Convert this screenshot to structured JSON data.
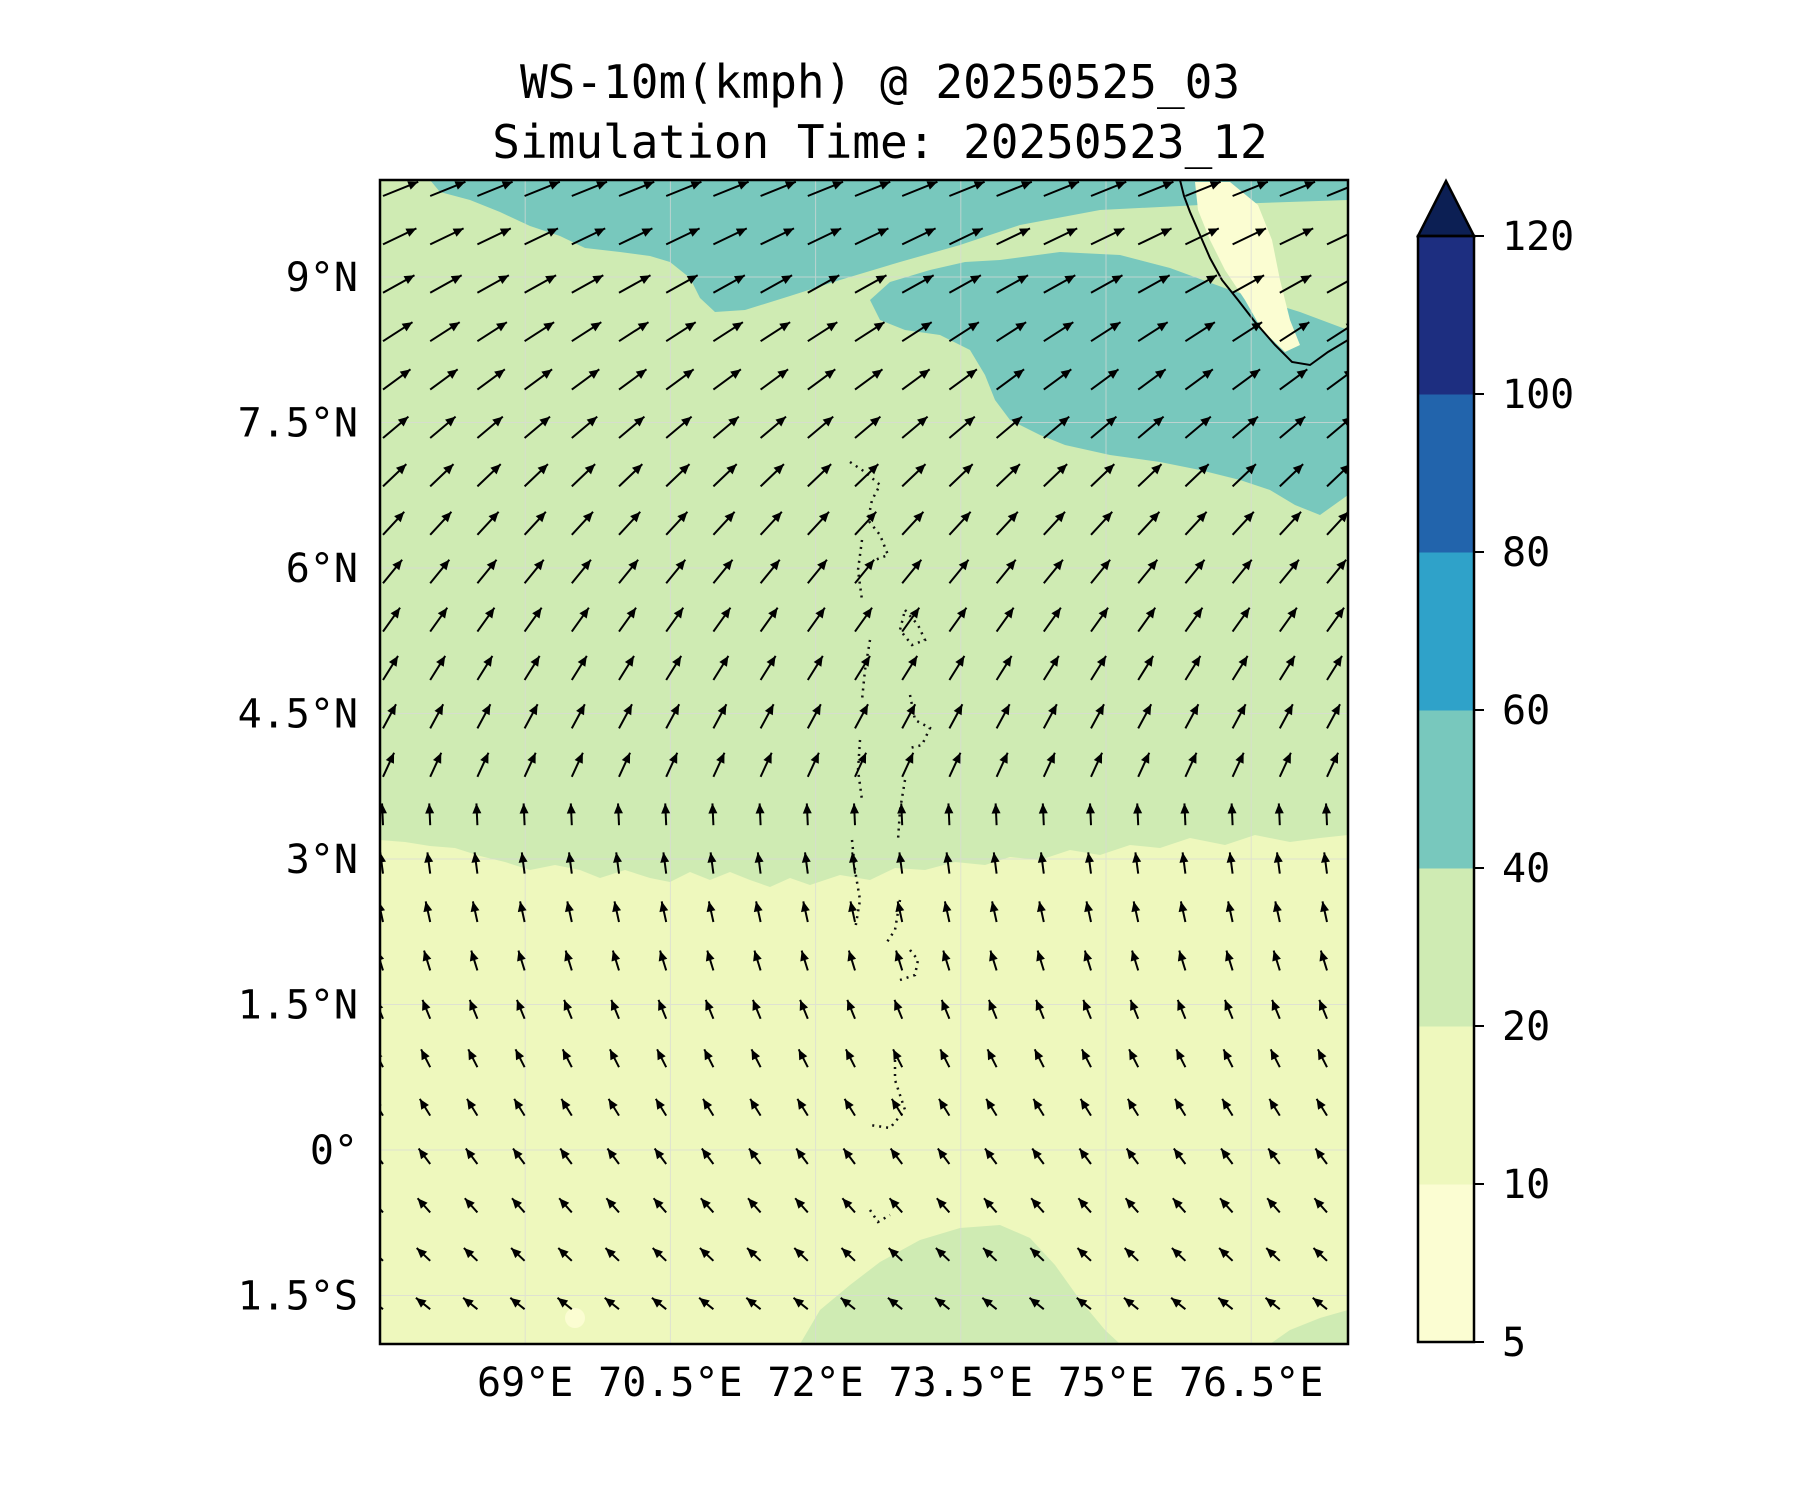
{
  "title": {
    "line1": "WS-10m(kmph) @ 20250525_03",
    "line2": "Simulation Time: 20250523_12"
  },
  "map": {
    "lon_range": [
      67.5,
      77.5
    ],
    "lat_range": [
      -2.0,
      10.0
    ],
    "lon_ticks": [
      {
        "value": 69.0,
        "label": "69°E"
      },
      {
        "value": 70.5,
        "label": "70.5°E"
      },
      {
        "value": 72.0,
        "label": "72°E"
      },
      {
        "value": 73.5,
        "label": "73.5°E"
      },
      {
        "value": 75.0,
        "label": "75°E"
      },
      {
        "value": 76.5,
        "label": "76.5°E"
      }
    ],
    "lat_ticks": [
      {
        "value": 9.0,
        "label": "9°N"
      },
      {
        "value": 7.5,
        "label": "7.5°N"
      },
      {
        "value": 6.0,
        "label": "6°N"
      },
      {
        "value": 4.5,
        "label": "4.5°N"
      },
      {
        "value": 3.0,
        "label": "3°N"
      },
      {
        "value": 1.5,
        "label": "1.5°N"
      },
      {
        "value": 0.0,
        "label": "0°"
      },
      {
        "value": -1.5,
        "label": "1.5°S"
      }
    ],
    "colors": {
      "background_10_20": "#eef8bd",
      "band_20_40": "#cfebb3",
      "band_40_60": "#78c8bd",
      "band_5_10": "#fbfdd2"
    }
  },
  "colorbar": {
    "levels": [
      {
        "value": 5,
        "label": "5"
      },
      {
        "value": 10,
        "label": "10"
      },
      {
        "value": 20,
        "label": "20"
      },
      {
        "value": 40,
        "label": "40"
      },
      {
        "value": 60,
        "label": "60"
      },
      {
        "value": 80,
        "label": "80"
      },
      {
        "value": 100,
        "label": "100"
      },
      {
        "value": 120,
        "label": "120"
      }
    ],
    "colors": [
      "#fbfdd2",
      "#eef8bd",
      "#cfebb3",
      "#78c8bd",
      "#2fa2c9",
      "#2264ac",
      "#1d2e80"
    ],
    "extend_color": "#0c1f54"
  }
}
